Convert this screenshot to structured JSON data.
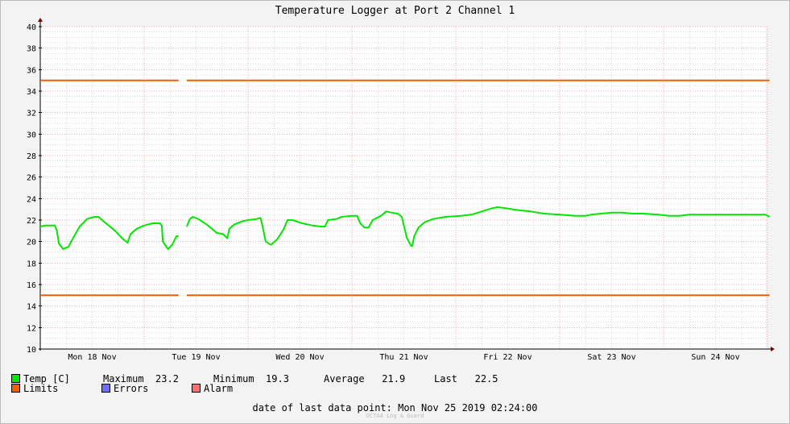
{
  "chart_data": {
    "type": "line",
    "title": "Temperature Logger at Port 2 Channel 1",
    "ylim": [
      10,
      40
    ],
    "yticks": [
      10,
      12,
      14,
      16,
      18,
      20,
      22,
      24,
      26,
      28,
      30,
      32,
      34,
      36,
      38,
      40
    ],
    "xlim_days": [
      0,
      7.08
    ],
    "day_labels": [
      "Mon 18 Nov",
      "Tue 19 Nov",
      "Wed 20 Nov",
      "Thu 21 Nov",
      "Fri 22 Nov",
      "Sat 23 Nov",
      "Sun 24 Nov"
    ],
    "grid": true,
    "series": [
      {
        "name": "Temp [C]",
        "color": "#00e800",
        "segments": [
          [
            [
              0.0,
              21.4
            ],
            [
              0.05,
              21.5
            ],
            [
              0.14,
              21.5
            ],
            [
              0.16,
              21.0
            ],
            [
              0.18,
              19.8
            ],
            [
              0.22,
              19.3
            ],
            [
              0.27,
              19.5
            ],
            [
              0.32,
              20.4
            ],
            [
              0.38,
              21.4
            ],
            [
              0.45,
              22.1
            ],
            [
              0.52,
              22.3
            ],
            [
              0.56,
              22.3
            ],
            [
              0.62,
              21.8
            ],
            [
              0.72,
              21.0
            ],
            [
              0.8,
              20.2
            ],
            [
              0.84,
              19.9
            ],
            [
              0.87,
              20.7
            ],
            [
              0.93,
              21.2
            ],
            [
              1.0,
              21.5
            ],
            [
              1.08,
              21.7
            ],
            [
              1.15,
              21.7
            ],
            [
              1.17,
              21.5
            ],
            [
              1.18,
              20.0
            ],
            [
              1.23,
              19.3
            ],
            [
              1.27,
              19.7
            ],
            [
              1.31,
              20.5
            ],
            [
              1.33,
              20.5
            ]
          ],
          [
            [
              1.41,
              21.4
            ],
            [
              1.44,
              22.1
            ],
            [
              1.47,
              22.3
            ],
            [
              1.52,
              22.1
            ],
            [
              1.6,
              21.6
            ],
            [
              1.7,
              20.8
            ],
            [
              1.76,
              20.7
            ],
            [
              1.8,
              20.3
            ],
            [
              1.82,
              21.2
            ],
            [
              1.87,
              21.6
            ],
            [
              1.95,
              21.9
            ],
            [
              2.0,
              22.0
            ],
            [
              2.08,
              22.1
            ],
            [
              2.12,
              22.2
            ],
            [
              2.14,
              21.4
            ],
            [
              2.17,
              20.0
            ],
            [
              2.22,
              19.7
            ],
            [
              2.28,
              20.2
            ],
            [
              2.34,
              21.1
            ],
            [
              2.38,
              22.0
            ],
            [
              2.43,
              22.0
            ],
            [
              2.52,
              21.7
            ],
            [
              2.62,
              21.5
            ],
            [
              2.7,
              21.4
            ],
            [
              2.74,
              21.4
            ],
            [
              2.77,
              22.0
            ],
            [
              2.85,
              22.1
            ],
            [
              2.9,
              22.3
            ],
            [
              3.0,
              22.4
            ],
            [
              3.05,
              22.4
            ],
            [
              3.08,
              21.7
            ],
            [
              3.12,
              21.3
            ],
            [
              3.16,
              21.3
            ],
            [
              3.2,
              22.0
            ],
            [
              3.28,
              22.4
            ],
            [
              3.33,
              22.8
            ],
            [
              3.38,
              22.7
            ],
            [
              3.44,
              22.6
            ],
            [
              3.48,
              22.3
            ],
            [
              3.5,
              21.5
            ],
            [
              3.53,
              20.3
            ],
            [
              3.57,
              19.6
            ],
            [
              3.58,
              19.6
            ],
            [
              3.6,
              20.5
            ],
            [
              3.64,
              21.3
            ],
            [
              3.7,
              21.8
            ],
            [
              3.78,
              22.1
            ],
            [
              3.9,
              22.3
            ],
            [
              4.05,
              22.4
            ],
            [
              4.15,
              22.5
            ],
            [
              4.25,
              22.8
            ],
            [
              4.35,
              23.1
            ],
            [
              4.4,
              23.2
            ],
            [
              4.48,
              23.1
            ],
            [
              4.55,
              23.0
            ],
            [
              4.62,
              22.9
            ],
            [
              4.72,
              22.8
            ],
            [
              4.85,
              22.6
            ],
            [
              5.0,
              22.5
            ],
            [
              5.15,
              22.4
            ],
            [
              5.25,
              22.4
            ],
            [
              5.3,
              22.5
            ],
            [
              5.4,
              22.6
            ],
            [
              5.5,
              22.7
            ],
            [
              5.6,
              22.7
            ],
            [
              5.7,
              22.6
            ],
            [
              5.8,
              22.6
            ],
            [
              5.95,
              22.5
            ],
            [
              6.05,
              22.4
            ],
            [
              6.15,
              22.4
            ],
            [
              6.25,
              22.5
            ],
            [
              6.4,
              22.5
            ],
            [
              6.6,
              22.5
            ],
            [
              6.8,
              22.5
            ],
            [
              6.98,
              22.5
            ],
            [
              7.02,
              22.3
            ]
          ]
        ]
      },
      {
        "name": "Limits",
        "color": "#f06000",
        "segments": [
          [
            [
              0.0,
              35
            ],
            [
              1.33,
              35
            ]
          ],
          [
            [
              1.41,
              35
            ],
            [
              7.02,
              35
            ]
          ],
          [
            [
              0.0,
              15
            ],
            [
              1.33,
              15
            ]
          ],
          [
            [
              1.41,
              15
            ],
            [
              7.02,
              15
            ]
          ]
        ]
      },
      {
        "name": "Errors",
        "color": "#6f6fff",
        "segments": []
      },
      {
        "name": "Alarm",
        "color": "#ff6f6f",
        "segments": []
      }
    ]
  },
  "legend": {
    "temp": {
      "label": "Temp [C]",
      "color": "#00e800"
    },
    "limits": {
      "label": "Limits",
      "color": "#f06000"
    },
    "errors": {
      "label": "Errors",
      "color": "#6f6fff"
    },
    "alarm": {
      "label": "Alarm",
      "color": "#ff6f6f"
    },
    "maximum_label": "Maximum",
    "maximum_value": "23.2",
    "minimum_label": "Minimum",
    "minimum_value": "19.3",
    "average_label": "Average",
    "average_value": "21.9",
    "last_label": "Last",
    "last_value": "22.5"
  },
  "footer": {
    "label": "date of last data point:",
    "value": "Mon Nov 25 2019 02:24:00"
  },
  "watermark": "OCTA4 Log & Guard"
}
